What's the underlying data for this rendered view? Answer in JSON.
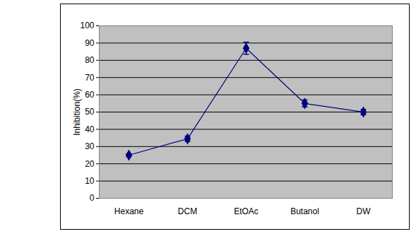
{
  "chart_data": {
    "type": "line",
    "categories": [
      "Hexane",
      "DCM",
      "EtOAc",
      "Butanol",
      "DW"
    ],
    "values": [
      25,
      34.5,
      87,
      55,
      50
    ],
    "errors": [
      0.8,
      1.5,
      3.5,
      2,
      1.5
    ],
    "y_label": "Inhibition(%)",
    "color": "#000080",
    "marker": "diamond",
    "ylim": [
      0,
      100
    ],
    "yticks": [
      0,
      10,
      20,
      30,
      40,
      50,
      60,
      70,
      80,
      90,
      100
    ],
    "grid": true
  }
}
